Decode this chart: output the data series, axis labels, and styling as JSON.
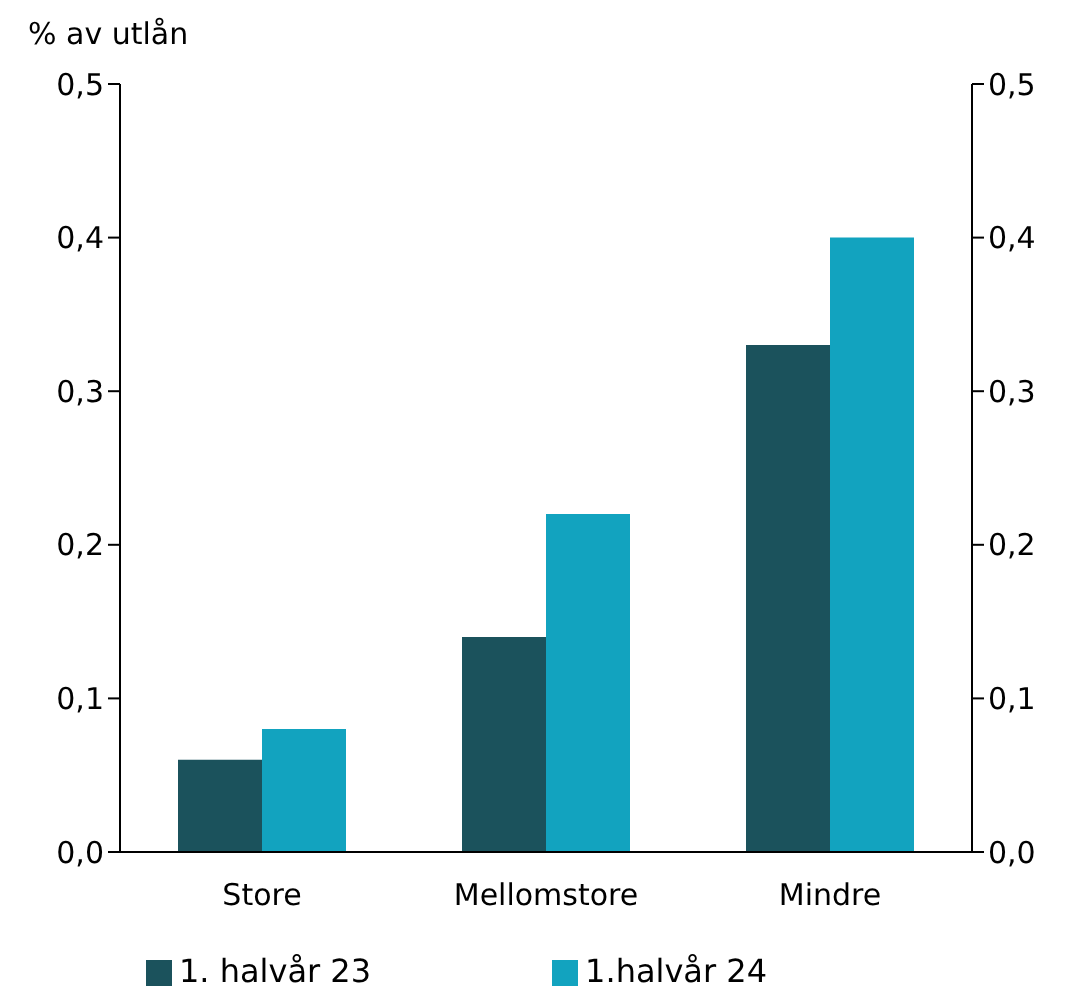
{
  "chart_data": {
    "type": "bar",
    "ylabel": "% av utlån",
    "categories": [
      "Store",
      "Mellomstore",
      "Mindre"
    ],
    "series": [
      {
        "name": "1. halvår 23",
        "color": "#1b525c",
        "values": [
          0.06,
          0.14,
          0.33
        ]
      },
      {
        "name": "1.halvår 24",
        "color": "#12a3bf",
        "values": [
          0.08,
          0.22,
          0.4
        ]
      }
    ],
    "ylim": [
      0,
      0.5
    ],
    "yticks": [
      {
        "value": 0,
        "label": "0,0"
      },
      {
        "value": 0.1,
        "label": "0,1"
      },
      {
        "value": 0.2,
        "label": "0,2"
      },
      {
        "value": 0.3,
        "label": "0,3"
      },
      {
        "value": 0.4,
        "label": "0,4"
      },
      {
        "value": 0.5,
        "label": "0,5"
      }
    ],
    "y2lim": [
      0,
      0.5
    ],
    "y2ticks": [
      {
        "value": 0,
        "label": "0,0"
      },
      {
        "value": 0.1,
        "label": "0,1"
      },
      {
        "value": 0.2,
        "label": "0,2"
      },
      {
        "value": 0.3,
        "label": "0,3"
      },
      {
        "value": 0.4,
        "label": "0,4"
      },
      {
        "value": 0.5,
        "label": "0,5"
      }
    ],
    "legend": "bottom",
    "grid": false
  }
}
